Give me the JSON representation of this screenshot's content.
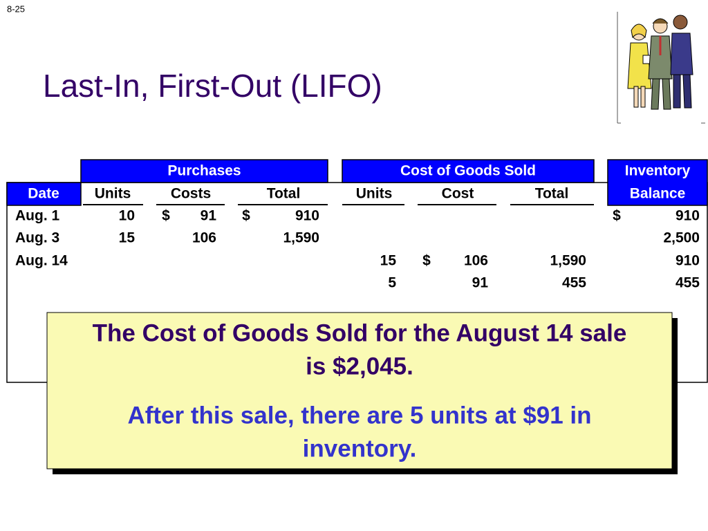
{
  "slide_number": "8-25",
  "title": "Last-In, First-Out (LIFO)",
  "table": {
    "groups": [
      "Purchases",
      "Cost of Goods Sold",
      "Inventory"
    ],
    "columns": [
      "Date",
      "Units",
      "Costs",
      "Total",
      "Units",
      "Cost",
      "Total",
      "Balance"
    ],
    "rows": [
      [
        "Aug. 1",
        "10",
        {
          "sign": "$",
          "text": "91"
        },
        {
          "sign": "$",
          "text": "910"
        },
        null,
        null,
        null,
        {
          "sign": "$",
          "text": "910"
        }
      ],
      [
        "Aug. 3",
        "15",
        "106",
        "1,590",
        null,
        null,
        null,
        "2,500"
      ],
      [
        "Aug. 14",
        null,
        null,
        null,
        "15",
        {
          "sign": "$",
          "text": "106"
        },
        "1,590",
        "910"
      ],
      [
        null,
        null,
        null,
        null,
        "5",
        "91",
        "455",
        "455"
      ]
    ]
  },
  "callout": {
    "summary": [
      "The Cost of Goods Sold for the August 14 sale",
      "is $2,045."
    ],
    "note": [
      "After this sale, there are 5 units at $91 in",
      "inventory."
    ]
  }
}
